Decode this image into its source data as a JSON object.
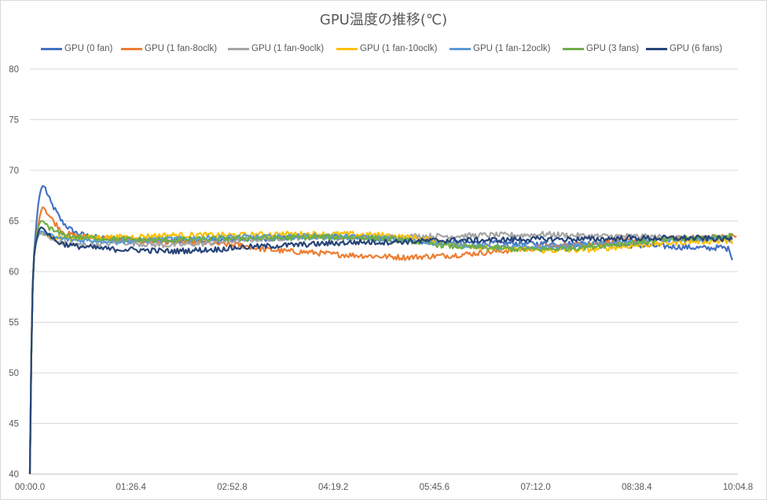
{
  "chart_data": {
    "type": "line",
    "title": "GPU温度の推移(℃)",
    "xlabel": "",
    "ylabel": "",
    "ylim": [
      40,
      80
    ],
    "yticks": [
      40,
      45,
      50,
      55,
      60,
      65,
      70,
      75,
      80
    ],
    "xlim_seconds": [
      0,
      604.8
    ],
    "xtick_labels": [
      "00:00.0",
      "01:26.4",
      "02:52.8",
      "04:19.2",
      "05:45.6",
      "07:12.0",
      "08:38.4",
      "10:04.8"
    ],
    "grid": true,
    "legend_position": "top",
    "series": [
      {
        "name": "GPU (0 fan)",
        "color": "#4472C4",
        "points": [
          [
            0,
            40
          ],
          [
            1,
            50
          ],
          [
            2,
            57
          ],
          [
            3,
            61
          ],
          [
            5,
            64
          ],
          [
            7,
            66.5
          ],
          [
            9,
            68
          ],
          [
            11,
            68.5
          ],
          [
            13,
            68.3
          ],
          [
            15,
            67.6
          ],
          [
            18,
            66.8
          ],
          [
            22,
            66
          ],
          [
            27,
            65
          ],
          [
            33,
            64.3
          ],
          [
            40,
            63.8
          ],
          [
            50,
            63.5
          ],
          [
            60,
            63.3
          ],
          [
            80,
            63.2
          ],
          [
            100,
            63.1
          ],
          [
            120,
            63
          ],
          [
            150,
            63
          ],
          [
            180,
            63.2
          ],
          [
            210,
            63.3
          ],
          [
            240,
            63.5
          ],
          [
            270,
            63.4
          ],
          [
            300,
            63.2
          ],
          [
            330,
            63
          ],
          [
            360,
            62.9
          ],
          [
            390,
            62.8
          ],
          [
            420,
            62.8
          ],
          [
            450,
            62.7
          ],
          [
            480,
            62.8
          ],
          [
            510,
            62.6
          ],
          [
            540,
            62.5
          ],
          [
            560,
            62.4
          ],
          [
            580,
            62.3
          ],
          [
            590,
            62.4
          ],
          [
            598,
            62.2
          ],
          [
            600,
            61.2
          ]
        ]
      },
      {
        "name": "GPU (1 fan-8oclk)",
        "color": "#ED7D31",
        "points": [
          [
            0,
            40
          ],
          [
            1,
            50
          ],
          [
            2,
            57
          ],
          [
            3,
            61
          ],
          [
            5,
            63
          ],
          [
            7,
            64.5
          ],
          [
            9,
            65.8
          ],
          [
            11,
            66.4
          ],
          [
            13,
            66.2
          ],
          [
            16,
            65.6
          ],
          [
            20,
            65
          ],
          [
            25,
            64.3
          ],
          [
            30,
            63.8
          ],
          [
            40,
            63.5
          ],
          [
            60,
            63.3
          ],
          [
            80,
            63.1
          ],
          [
            100,
            63
          ],
          [
            120,
            62.9
          ],
          [
            150,
            62.8
          ],
          [
            180,
            62.6
          ],
          [
            200,
            62.2
          ],
          [
            220,
            62
          ],
          [
            240,
            61.9
          ],
          [
            260,
            61.7
          ],
          [
            280,
            61.6
          ],
          [
            300,
            61.5
          ],
          [
            320,
            61.4
          ],
          [
            340,
            61.5
          ],
          [
            360,
            61.6
          ],
          [
            380,
            61.8
          ],
          [
            400,
            62
          ],
          [
            420,
            62.2
          ],
          [
            440,
            62.4
          ],
          [
            460,
            62.6
          ],
          [
            480,
            62.8
          ],
          [
            500,
            63
          ],
          [
            520,
            63.1
          ],
          [
            540,
            63.2
          ],
          [
            560,
            63.3
          ],
          [
            580,
            63.4
          ],
          [
            600,
            63.5
          ],
          [
            604,
            63.6
          ]
        ]
      },
      {
        "name": "GPU (1 fan-9oclk)",
        "color": "#A5A5A5",
        "points": [
          [
            0,
            40
          ],
          [
            1,
            50
          ],
          [
            2,
            57
          ],
          [
            3,
            61
          ],
          [
            5,
            62.8
          ],
          [
            7,
            63.5
          ],
          [
            9,
            63.8
          ],
          [
            12,
            63.6
          ],
          [
            16,
            63.4
          ],
          [
            20,
            63
          ],
          [
            30,
            62.8
          ],
          [
            40,
            62.6
          ],
          [
            60,
            62.7
          ],
          [
            80,
            62.9
          ],
          [
            100,
            62.7
          ],
          [
            120,
            62.6
          ],
          [
            150,
            62.8
          ],
          [
            180,
            63.1
          ],
          [
            210,
            63.3
          ],
          [
            240,
            63.4
          ],
          [
            270,
            63.3
          ],
          [
            300,
            63.4
          ],
          [
            330,
            63.5
          ],
          [
            360,
            63.5
          ],
          [
            390,
            63.6
          ],
          [
            420,
            63.6
          ],
          [
            440,
            63.7
          ],
          [
            460,
            63.6
          ],
          [
            480,
            63.5
          ],
          [
            510,
            63.5
          ],
          [
            540,
            63.4
          ],
          [
            570,
            63.3
          ],
          [
            600,
            63.2
          ]
        ]
      },
      {
        "name": "GPU (1 fan-10oclk)",
        "color": "#FFC000",
        "points": [
          [
            0,
            40
          ],
          [
            1,
            50
          ],
          [
            2,
            57
          ],
          [
            3,
            61
          ],
          [
            5,
            62.8
          ],
          [
            7,
            63.5
          ],
          [
            9,
            64
          ],
          [
            12,
            63.8
          ],
          [
            16,
            63.6
          ],
          [
            20,
            63.4
          ],
          [
            30,
            63.3
          ],
          [
            40,
            63.3
          ],
          [
            60,
            63.4
          ],
          [
            80,
            63.4
          ],
          [
            100,
            63.5
          ],
          [
            120,
            63.6
          ],
          [
            150,
            63.6
          ],
          [
            180,
            63.6
          ],
          [
            210,
            63.7
          ],
          [
            240,
            63.7
          ],
          [
            270,
            63.7
          ],
          [
            300,
            63.6
          ],
          [
            330,
            63.3
          ],
          [
            360,
            62.8
          ],
          [
            390,
            62.4
          ],
          [
            420,
            62.2
          ],
          [
            440,
            62.1
          ],
          [
            460,
            62.1
          ],
          [
            480,
            62.2
          ],
          [
            510,
            62.5
          ],
          [
            540,
            62.8
          ],
          [
            570,
            63
          ],
          [
            600,
            63
          ]
        ]
      },
      {
        "name": "GPU (1 fan-12oclk)",
        "color": "#5B9BD5",
        "points": [
          [
            0,
            40
          ],
          [
            1,
            50
          ],
          [
            2,
            57
          ],
          [
            3,
            61
          ],
          [
            5,
            62.8
          ],
          [
            7,
            63.5
          ],
          [
            9,
            64
          ],
          [
            12,
            63.9
          ],
          [
            16,
            63.6
          ],
          [
            20,
            63.4
          ],
          [
            30,
            63.2
          ],
          [
            40,
            63.1
          ],
          [
            60,
            63.1
          ],
          [
            80,
            63
          ],
          [
            100,
            63.1
          ],
          [
            120,
            63.2
          ],
          [
            150,
            63.3
          ],
          [
            180,
            63.4
          ],
          [
            210,
            63.4
          ],
          [
            240,
            63.5
          ],
          [
            270,
            63.4
          ],
          [
            300,
            63.3
          ],
          [
            330,
            63
          ],
          [
            360,
            62.7
          ],
          [
            390,
            62.5
          ],
          [
            420,
            62.4
          ],
          [
            440,
            62.4
          ],
          [
            460,
            62.5
          ],
          [
            480,
            62.7
          ],
          [
            510,
            62.9
          ],
          [
            540,
            63.1
          ],
          [
            570,
            63.2
          ],
          [
            600,
            63.3
          ]
        ]
      },
      {
        "name": "GPU (3 fans)",
        "color": "#70AD47",
        "points": [
          [
            0,
            40
          ],
          [
            1,
            50
          ],
          [
            2,
            57
          ],
          [
            3,
            61
          ],
          [
            5,
            63
          ],
          [
            7,
            64.3
          ],
          [
            9,
            65
          ],
          [
            11,
            65
          ],
          [
            14,
            64.7
          ],
          [
            18,
            64.2
          ],
          [
            22,
            63.9
          ],
          [
            30,
            63.6
          ],
          [
            40,
            63.4
          ],
          [
            60,
            63.3
          ],
          [
            80,
            63.2
          ],
          [
            100,
            63.1
          ],
          [
            120,
            63.1
          ],
          [
            150,
            63.2
          ],
          [
            180,
            63.3
          ],
          [
            210,
            63.3
          ],
          [
            240,
            63.4
          ],
          [
            270,
            63.4
          ],
          [
            300,
            63.3
          ],
          [
            320,
            63.1
          ],
          [
            340,
            62.8
          ],
          [
            360,
            62.5
          ],
          [
            380,
            62.4
          ],
          [
            400,
            62.3
          ],
          [
            420,
            62.2
          ],
          [
            440,
            62.2
          ],
          [
            460,
            62.3
          ],
          [
            480,
            62.5
          ],
          [
            510,
            62.8
          ],
          [
            540,
            63.1
          ],
          [
            570,
            63.3
          ],
          [
            600,
            63.5
          ]
        ]
      },
      {
        "name": "GPU (6 fans)",
        "color": "#264478",
        "points": [
          [
            0,
            40
          ],
          [
            1,
            50
          ],
          [
            2,
            57
          ],
          [
            3,
            61
          ],
          [
            5,
            62.8
          ],
          [
            7,
            63.8
          ],
          [
            9,
            64.4
          ],
          [
            11,
            64.3
          ],
          [
            14,
            64
          ],
          [
            18,
            63.5
          ],
          [
            22,
            63
          ],
          [
            30,
            62.7
          ],
          [
            40,
            62.5
          ],
          [
            50,
            62.4
          ],
          [
            60,
            62.3
          ],
          [
            70,
            62.2
          ],
          [
            80,
            62.2
          ],
          [
            100,
            62.1
          ],
          [
            120,
            62
          ],
          [
            140,
            62.1
          ],
          [
            160,
            62.2
          ],
          [
            180,
            62.4
          ],
          [
            200,
            62.5
          ],
          [
            220,
            62.6
          ],
          [
            240,
            62.7
          ],
          [
            260,
            62.8
          ],
          [
            280,
            62.9
          ],
          [
            300,
            62.9
          ],
          [
            330,
            63
          ],
          [
            360,
            63.1
          ],
          [
            390,
            63.1
          ],
          [
            420,
            63.2
          ],
          [
            450,
            63.2
          ],
          [
            480,
            63.2
          ],
          [
            510,
            63.3
          ],
          [
            540,
            63.3
          ],
          [
            570,
            63.3
          ],
          [
            600,
            63.2
          ]
        ]
      }
    ]
  }
}
